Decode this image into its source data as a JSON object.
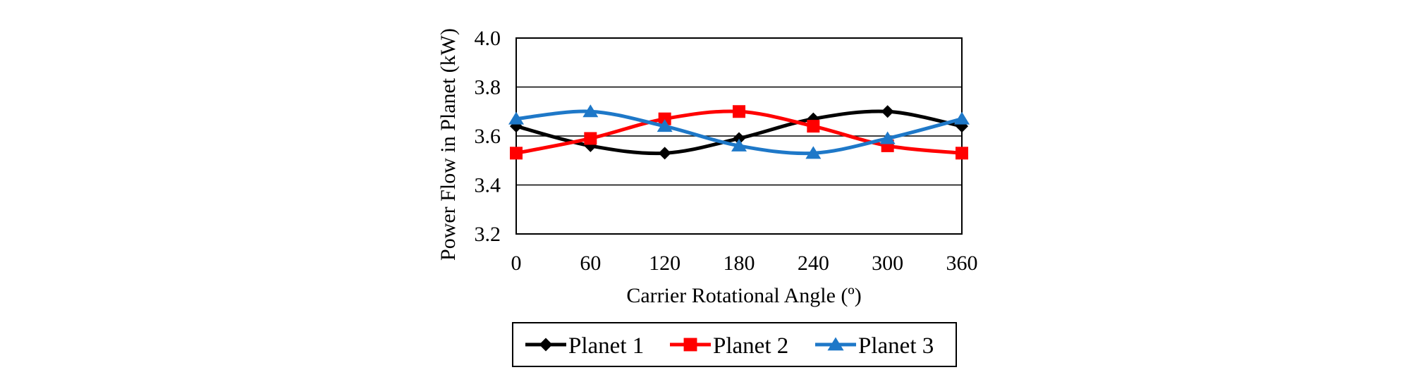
{
  "chart_data": {
    "type": "line",
    "title": "",
    "xlabel": "Carrier Rotational Angle (º)",
    "ylabel": "Power Flow in Planet (kW)",
    "x": [
      0,
      60,
      120,
      180,
      240,
      300,
      360
    ],
    "xticks": [
      "0",
      "60",
      "120",
      "180",
      "240",
      "300",
      "360"
    ],
    "yticks": [
      "3.2",
      "3.4",
      "3.6",
      "3.8",
      "4.0"
    ],
    "xlim": [
      0,
      360
    ],
    "ylim": [
      3.2,
      4.0
    ],
    "grid": "horizontal",
    "legend_position": "bottom",
    "series": [
      {
        "name": "Planet 1",
        "color": "#000000",
        "marker": "diamond",
        "values": [
          3.64,
          3.56,
          3.53,
          3.59,
          3.67,
          3.7,
          3.64
        ]
      },
      {
        "name": "Planet 2",
        "color": "#ff0000",
        "marker": "square",
        "values": [
          3.53,
          3.59,
          3.67,
          3.7,
          3.64,
          3.56,
          3.53
        ]
      },
      {
        "name": "Planet 3",
        "color": "#1e78c8",
        "marker": "triangle",
        "values": [
          3.67,
          3.7,
          3.64,
          3.56,
          3.53,
          3.59,
          3.67
        ]
      }
    ]
  }
}
